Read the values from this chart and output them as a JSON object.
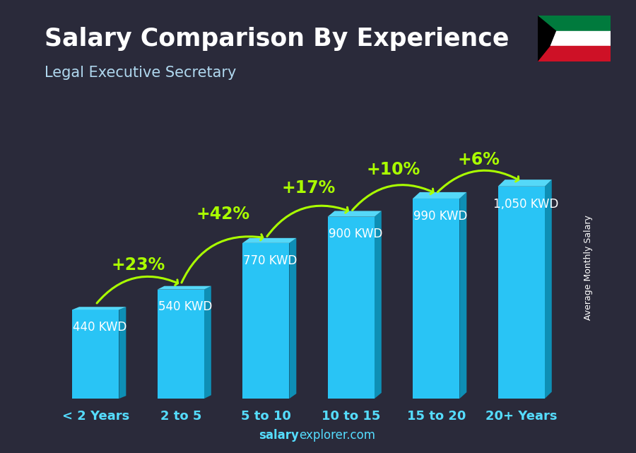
{
  "title": "Salary Comparison By Experience",
  "subtitle": "Legal Executive Secretary",
  "categories": [
    "< 2 Years",
    "2 to 5",
    "5 to 10",
    "10 to 15",
    "15 to 20",
    "20+ Years"
  ],
  "values": [
    440,
    540,
    770,
    900,
    990,
    1050
  ],
  "value_labels": [
    "440 KWD",
    "540 KWD",
    "770 KWD",
    "900 KWD",
    "990 KWD",
    "1,050 KWD"
  ],
  "pct_changes": [
    null,
    "+23%",
    "+42%",
    "+17%",
    "+10%",
    "+6%"
  ],
  "bar_face_color": "#29c4f5",
  "bar_side_color": "#0e8fb5",
  "bar_top_color": "#55d8f8",
  "bg_color": "#2a2a3a",
  "title_color": "#ffffff",
  "subtitle_color": "#b0d8ef",
  "label_color": "#ffffff",
  "pct_color": "#aaff00",
  "tick_color": "#55ddff",
  "watermark_salary": "salary",
  "watermark_rest": "explorer.com",
  "ylabel": "Average Monthly Salary",
  "ylim": [
    0,
    1300
  ],
  "bar_width": 0.55,
  "title_fontsize": 25,
  "subtitle_fontsize": 15,
  "label_fontsize": 12,
  "pct_fontsize": 17,
  "tick_fontsize": 13
}
